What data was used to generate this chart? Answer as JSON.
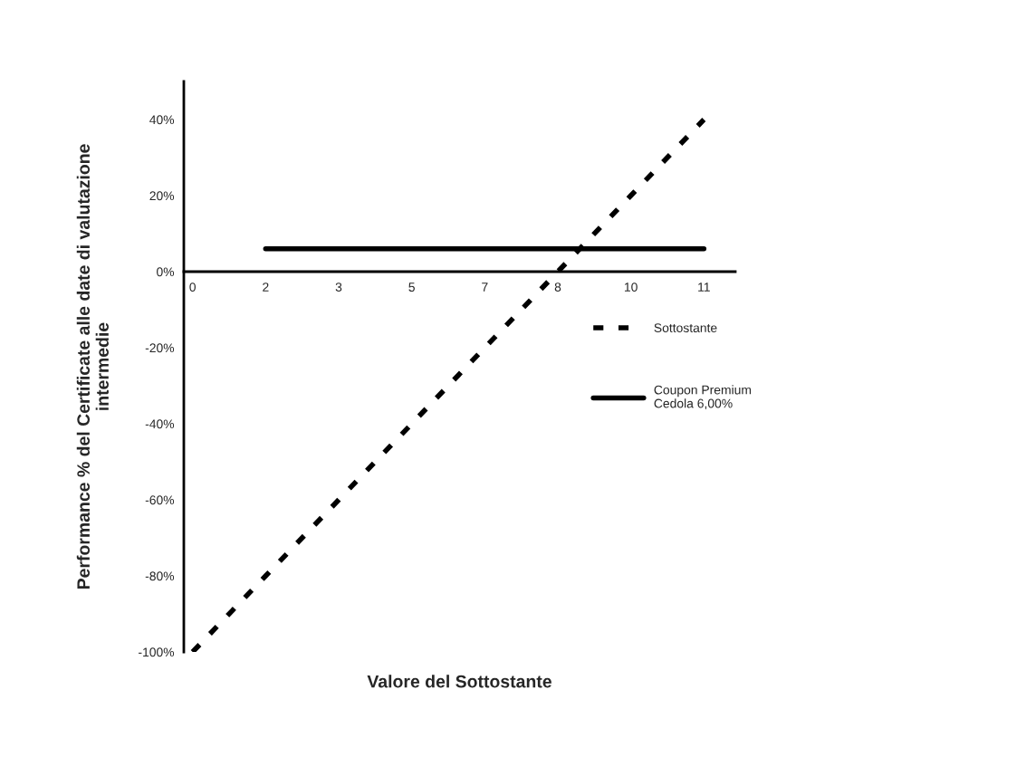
{
  "chart_data": {
    "type": "line",
    "xlabel": "Valore del Sottostante",
    "ylabel": "Performance % del Certificate alle date di valutazione\nintermedie",
    "categories": [
      "0",
      "2",
      "3",
      "5",
      "7",
      "8",
      "10",
      "11"
    ],
    "ylim": [
      -100,
      50
    ],
    "yticks": [
      {
        "value": -100,
        "label": "-100%"
      },
      {
        "value": -80,
        "label": "-80%"
      },
      {
        "value": -60,
        "label": "-60%"
      },
      {
        "value": -40,
        "label": "-40%"
      },
      {
        "value": -20,
        "label": "-20%"
      },
      {
        "value": 0,
        "label": "0%"
      },
      {
        "value": 20,
        "label": "20%"
      },
      {
        "value": 40,
        "label": "40%"
      }
    ],
    "series": [
      {
        "name": "Sottostante",
        "color": "#000000",
        "line_style": "dashed",
        "values": [
          -100,
          -80,
          -60,
          -40,
          -20,
          0,
          20,
          40
        ]
      },
      {
        "name": "Coupon Premium\nCedola 6,00%",
        "color": "#000000",
        "line_style": "solid",
        "values": [
          null,
          6,
          6,
          6,
          6,
          6,
          6,
          6
        ]
      }
    ],
    "grid": false,
    "legend": "right",
    "marker": "none"
  }
}
